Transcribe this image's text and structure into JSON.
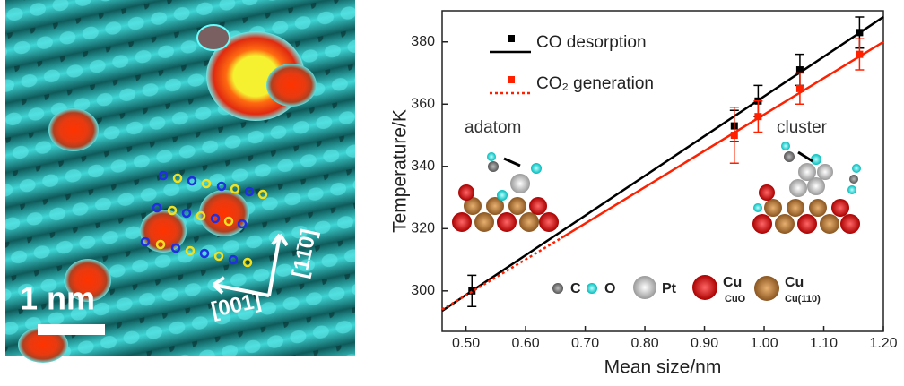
{
  "image": {
    "scale_bar": "1 nm",
    "direction_1": "[001]",
    "direction_2": "[11̄0]"
  },
  "atom_legend": [
    "C",
    "O",
    "Pt",
    "Cu",
    "CuO",
    "Cu",
    "Cu(110)"
  ],
  "chart_data": {
    "type": "scatter",
    "x_label": "Mean size/nm",
    "y_label": "Temperature/K",
    "annotations": [
      "adatom",
      "cluster"
    ],
    "xlim": [
      0.46,
      1.2
    ],
    "ylim": [
      287,
      390
    ],
    "xticks": [
      {
        "value": 0.5,
        "label": "0.50"
      },
      {
        "value": 0.6,
        "label": "0.60"
      },
      {
        "value": 0.7,
        "label": "0.70"
      },
      {
        "value": 0.8,
        "label": "0.80"
      },
      {
        "value": 0.9,
        "label": "0.90"
      },
      {
        "value": 1.0,
        "label": "1.00"
      },
      {
        "value": 1.1,
        "label": "1.10"
      },
      {
        "value": 1.2,
        "label": "1.20"
      }
    ],
    "yticks": [
      300,
      320,
      340,
      360,
      380
    ],
    "series": [
      {
        "name": "CO desorption",
        "color": "#000000",
        "x": [
          0.51,
          0.95,
          0.99,
          1.06,
          1.16
        ],
        "values": [
          300,
          353,
          361,
          371,
          383
        ],
        "errors": [
          5,
          5,
          5,
          5,
          5
        ],
        "fit": {
          "x": [
            0.46,
            1.2
          ],
          "values": [
            293.6,
            388
          ],
          "styles": [
            "solid"
          ]
        }
      },
      {
        "name": "CO₂ generation",
        "color": "#ff2000",
        "x": [
          0.95,
          0.99,
          1.06,
          1.16
        ],
        "values": [
          350,
          356,
          365,
          376
        ],
        "errors": [
          9,
          5,
          5,
          5
        ],
        "fit": {
          "x": [
            0.46,
            0.66,
            1.2
          ],
          "values": [
            294,
            317,
            380
          ],
          "styles": [
            "dotted",
            "solid"
          ]
        }
      }
    ]
  }
}
